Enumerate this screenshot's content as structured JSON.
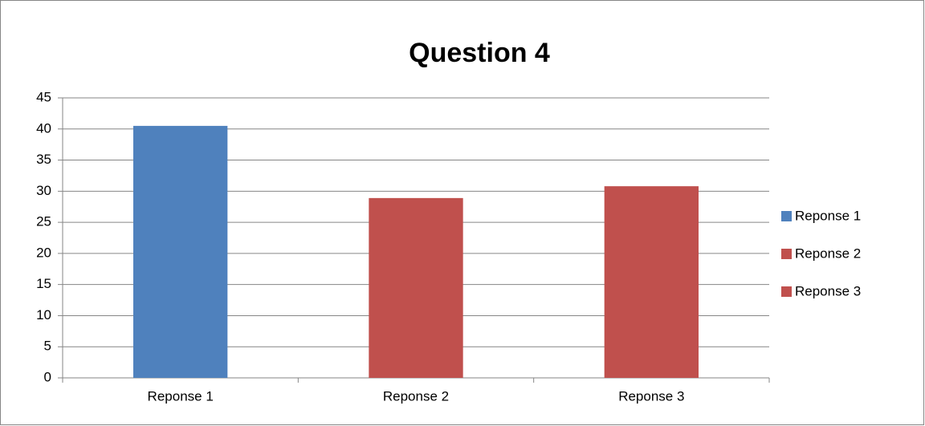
{
  "chart_data": {
    "type": "bar",
    "title": "Question 4",
    "categories": [
      "Reponse 1",
      "Reponse 2",
      "Reponse 3"
    ],
    "values": [
      40.5,
      28.9,
      30.8
    ],
    "colors": [
      "#4f81bd",
      "#c0504d",
      "#c0504d"
    ],
    "ylim": [
      0,
      45
    ],
    "yticks": [
      0,
      5,
      10,
      15,
      20,
      25,
      30,
      35,
      40,
      45
    ],
    "grid": true,
    "legend": "right"
  }
}
